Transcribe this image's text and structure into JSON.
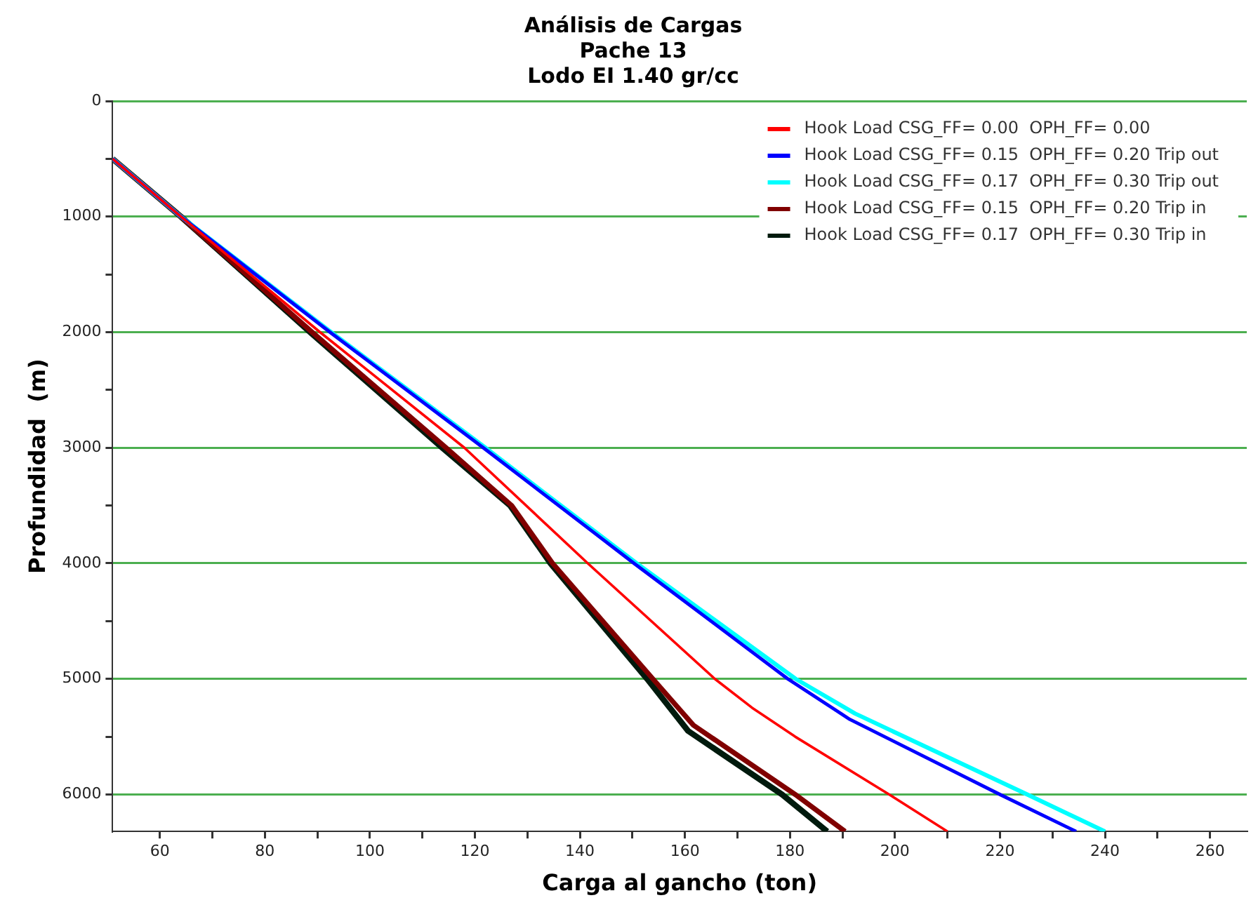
{
  "chart_data": {
    "type": "line",
    "title": "Análisis de Cargas\nPache 13\nLodo EI 1.40 gr/cc",
    "xlabel": "Carga al gancho (ton)",
    "ylabel": "Profundidad  (m)",
    "xlim": [
      51,
      267
    ],
    "xticks": [
      60,
      {
        "value": 70,
        "label": null
      },
      80,
      {
        "value": 90,
        "label": null
      },
      100,
      {
        "value": 110,
        "label": null
      },
      120,
      {
        "value": 130,
        "label": null
      },
      140,
      {
        "value": 150,
        "label": null
      },
      160,
      {
        "value": 170,
        "label": null
      },
      180,
      {
        "value": 190,
        "label": null
      },
      200,
      {
        "value": 210,
        "label": null
      },
      220,
      {
        "value": 230,
        "label": null
      },
      240,
      {
        "value": 250,
        "label": null
      },
      260
    ],
    "ylim": [
      6320,
      0
    ],
    "yticks": [
      0,
      {
        "value": 500,
        "label": null
      },
      1000,
      {
        "value": 1500,
        "label": null
      },
      2000,
      {
        "value": 2500,
        "label": null
      },
      3000,
      {
        "value": 3500,
        "label": null
      },
      4000,
      {
        "value": 4500,
        "label": null
      },
      5000,
      {
        "value": 5500,
        "label": null
      },
      6000
    ],
    "grid": "y",
    "legend": "top right",
    "marker": "none",
    "line_style": "solid",
    "series": [
      {
        "name": "Hook Load CSG_FF= 0.00  OPH_FF= 0.00",
        "color": "#ff0000",
        "x": [
          51,
          64,
          90.5,
          118,
          141.5,
          165.7,
          172.8,
          181,
          198.9,
          210
        ],
        "values": [
          500,
          1000,
          2000,
          3000,
          4000,
          5000,
          5250,
          5500,
          6000,
          6320
        ]
      },
      {
        "name": "Hook Load CSG_FF= 0.15  OPH_FF= 0.20 Trip out",
        "color": "#0000ff",
        "x": [
          51,
          64,
          92.4,
          121.6,
          150.3,
          179.6,
          191.4,
          220,
          234.5
        ],
        "values": [
          500,
          1000,
          2000,
          3000,
          4000,
          5000,
          5350,
          6000,
          6320
        ]
      },
      {
        "name": "Hook Load CSG_FF= 0.17  OPH_FF= 0.30 Trip out",
        "color": "#00ffff",
        "x": [
          51,
          64,
          92.6,
          122,
          150.8,
          181.1,
          192.4,
          225.2,
          240
        ],
        "values": [
          500,
          1000,
          2000,
          3000,
          4000,
          5000,
          5300,
          6000,
          6320
        ]
      },
      {
        "name": "Hook Load CSG_FF= 0.15  OPH_FF= 0.20 Trip in",
        "color": "#800000",
        "x": [
          51,
          64,
          89,
          114.5,
          127,
          134.8,
          153.9,
          161.6,
          181,
          190.5
        ],
        "values": [
          500,
          1000,
          2000,
          3000,
          3500,
          4000,
          5000,
          5400,
          6000,
          6320
        ]
      },
      {
        "name": "Hook Load CSG_FF= 0.17  OPH_FF= 0.30 Trip in",
        "color": "#001a0d",
        "x": [
          51,
          64,
          88.6,
          113.8,
          126.7,
          134.4,
          152.8,
          160.6,
          178.5,
          187.1
        ],
        "values": [
          500,
          1000,
          2000,
          3000,
          3500,
          4000,
          5000,
          5450,
          6000,
          6320
        ]
      }
    ]
  }
}
